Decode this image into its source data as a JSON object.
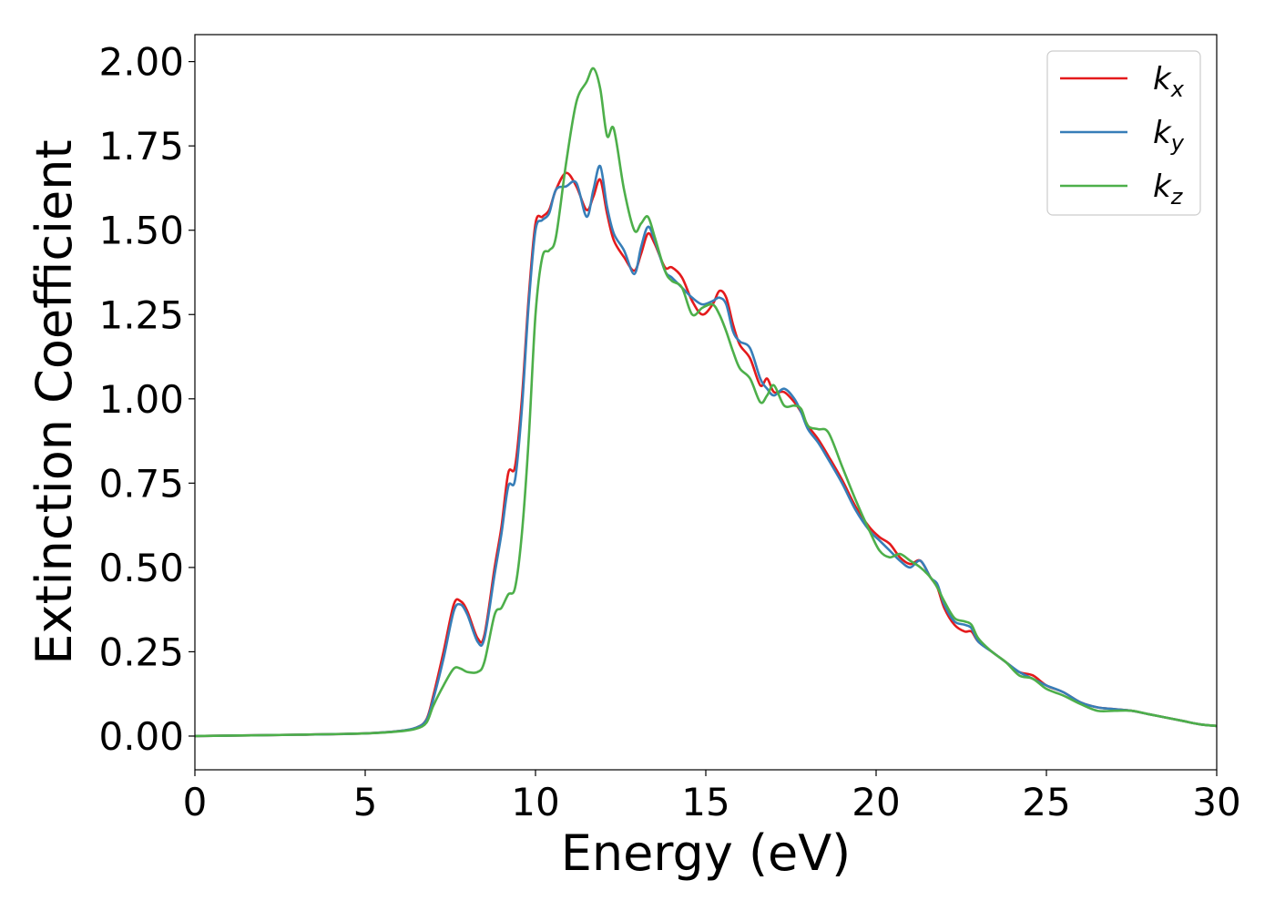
{
  "chart_data": {
    "type": "line",
    "title": "",
    "xlabel": "Energy (eV)",
    "ylabel": "Extinction Coefficient",
    "xlim": [
      0,
      30
    ],
    "ylim": [
      -0.1,
      2.08
    ],
    "xticks": [
      0,
      5,
      10,
      15,
      20,
      25,
      30
    ],
    "xtick_labels": [
      "0",
      "5",
      "10",
      "15",
      "20",
      "25",
      "30"
    ],
    "yticks": [
      0.0,
      0.25,
      0.5,
      0.75,
      1.0,
      1.25,
      1.5,
      1.75,
      2.0
    ],
    "ytick_labels": [
      "0.00",
      "0.25",
      "0.50",
      "0.75",
      "1.00",
      "1.25",
      "1.50",
      "1.75",
      "2.00"
    ],
    "grid": false,
    "legend_position": "top-right",
    "series": [
      {
        "name": "k_x",
        "label_base": "k",
        "label_sub": "x",
        "color": "#e41a1c",
        "x": [
          0,
          3,
          5,
          6,
          6.5,
          6.8,
          7.0,
          7.3,
          7.6,
          7.8,
          8.0,
          8.3,
          8.5,
          8.8,
          9.0,
          9.2,
          9.4,
          9.6,
          9.8,
          10.0,
          10.2,
          10.4,
          10.6,
          10.9,
          11.2,
          11.5,
          11.7,
          11.9,
          12.1,
          12.3,
          12.6,
          12.9,
          13.1,
          13.3,
          13.5,
          13.8,
          14.0,
          14.3,
          14.6,
          14.9,
          15.2,
          15.4,
          15.6,
          15.8,
          16.0,
          16.3,
          16.6,
          16.8,
          17.0,
          17.3,
          17.6,
          17.8,
          18.0,
          18.3,
          18.6,
          19.0,
          19.4,
          19.8,
          20.1,
          20.4,
          20.7,
          21.0,
          21.3,
          21.6,
          21.8,
          22.0,
          22.3,
          22.6,
          22.8,
          23.0,
          23.4,
          23.8,
          24.2,
          24.6,
          25.0,
          25.5,
          26.0,
          26.5,
          27.0,
          27.5,
          28.0,
          28.5,
          29.0,
          29.5,
          30.0
        ],
        "values": [
          0.0,
          0.004,
          0.008,
          0.015,
          0.025,
          0.05,
          0.12,
          0.25,
          0.39,
          0.4,
          0.37,
          0.29,
          0.3,
          0.5,
          0.62,
          0.78,
          0.8,
          1.0,
          1.3,
          1.52,
          1.54,
          1.56,
          1.62,
          1.67,
          1.63,
          1.56,
          1.6,
          1.65,
          1.55,
          1.47,
          1.42,
          1.38,
          1.43,
          1.49,
          1.46,
          1.39,
          1.39,
          1.36,
          1.29,
          1.25,
          1.28,
          1.32,
          1.3,
          1.22,
          1.16,
          1.12,
          1.04,
          1.06,
          1.02,
          1.02,
          0.99,
          0.96,
          0.92,
          0.88,
          0.83,
          0.76,
          0.68,
          0.62,
          0.59,
          0.57,
          0.53,
          0.51,
          0.52,
          0.47,
          0.44,
          0.38,
          0.33,
          0.31,
          0.31,
          0.28,
          0.25,
          0.22,
          0.19,
          0.18,
          0.15,
          0.13,
          0.1,
          0.085,
          0.08,
          0.075,
          0.065,
          0.055,
          0.045,
          0.035,
          0.03
        ]
      },
      {
        "name": "k_y",
        "label_base": "k",
        "label_sub": "y",
        "color": "#377eb8",
        "x": [
          0,
          3,
          5,
          6,
          6.5,
          6.8,
          7.0,
          7.3,
          7.6,
          7.8,
          8.0,
          8.3,
          8.5,
          8.8,
          9.0,
          9.2,
          9.4,
          9.6,
          9.8,
          10.0,
          10.2,
          10.4,
          10.6,
          10.9,
          11.2,
          11.5,
          11.7,
          11.9,
          12.1,
          12.3,
          12.6,
          12.9,
          13.1,
          13.3,
          13.5,
          13.8,
          14.0,
          14.3,
          14.6,
          14.9,
          15.2,
          15.4,
          15.6,
          15.8,
          16.0,
          16.3,
          16.6,
          16.8,
          17.0,
          17.3,
          17.6,
          17.8,
          18.0,
          18.3,
          18.6,
          19.0,
          19.4,
          19.8,
          20.1,
          20.4,
          20.7,
          21.0,
          21.3,
          21.6,
          21.8,
          22.0,
          22.3,
          22.6,
          22.8,
          23.0,
          23.4,
          23.8,
          24.2,
          24.6,
          25.0,
          25.5,
          26.0,
          26.5,
          27.0,
          27.5,
          28.0,
          28.5,
          29.0,
          29.5,
          30.0
        ],
        "values": [
          0.0,
          0.004,
          0.008,
          0.015,
          0.025,
          0.048,
          0.11,
          0.23,
          0.37,
          0.39,
          0.36,
          0.28,
          0.29,
          0.48,
          0.6,
          0.74,
          0.76,
          0.97,
          1.28,
          1.5,
          1.53,
          1.55,
          1.62,
          1.63,
          1.64,
          1.54,
          1.62,
          1.69,
          1.57,
          1.49,
          1.44,
          1.37,
          1.45,
          1.51,
          1.47,
          1.38,
          1.36,
          1.33,
          1.3,
          1.28,
          1.29,
          1.3,
          1.28,
          1.2,
          1.17,
          1.15,
          1.06,
          1.03,
          1.01,
          1.03,
          1.0,
          0.96,
          0.91,
          0.87,
          0.82,
          0.75,
          0.67,
          0.61,
          0.58,
          0.55,
          0.52,
          0.5,
          0.52,
          0.47,
          0.45,
          0.39,
          0.34,
          0.33,
          0.32,
          0.28,
          0.25,
          0.22,
          0.19,
          0.17,
          0.15,
          0.13,
          0.1,
          0.085,
          0.08,
          0.075,
          0.065,
          0.055,
          0.045,
          0.035,
          0.03
        ]
      },
      {
        "name": "k_z",
        "label_base": "k",
        "label_sub": "z",
        "color": "#4daf4a",
        "x": [
          0,
          3,
          5,
          6,
          6.5,
          6.8,
          7.0,
          7.3,
          7.6,
          7.8,
          8.0,
          8.3,
          8.5,
          8.8,
          9.0,
          9.2,
          9.4,
          9.6,
          9.8,
          10.0,
          10.2,
          10.4,
          10.6,
          10.9,
          11.2,
          11.5,
          11.7,
          11.9,
          12.1,
          12.3,
          12.6,
          12.9,
          13.1,
          13.3,
          13.5,
          13.8,
          14.0,
          14.3,
          14.6,
          14.9,
          15.2,
          15.4,
          15.6,
          15.8,
          16.0,
          16.3,
          16.6,
          16.8,
          17.0,
          17.3,
          17.6,
          17.8,
          18.0,
          18.3,
          18.6,
          19.0,
          19.4,
          19.8,
          20.1,
          20.4,
          20.7,
          21.0,
          21.3,
          21.6,
          21.8,
          22.0,
          22.3,
          22.6,
          22.8,
          23.0,
          23.4,
          23.8,
          24.2,
          24.6,
          25.0,
          25.5,
          26.0,
          26.5,
          27.0,
          27.5,
          28.0,
          28.5,
          29.0,
          29.5,
          30.0
        ],
        "values": [
          0.0,
          0.004,
          0.008,
          0.014,
          0.022,
          0.04,
          0.09,
          0.15,
          0.2,
          0.2,
          0.19,
          0.19,
          0.22,
          0.36,
          0.38,
          0.42,
          0.44,
          0.6,
          0.88,
          1.25,
          1.42,
          1.44,
          1.48,
          1.7,
          1.88,
          1.94,
          1.98,
          1.92,
          1.78,
          1.8,
          1.62,
          1.5,
          1.52,
          1.54,
          1.48,
          1.38,
          1.35,
          1.33,
          1.25,
          1.27,
          1.28,
          1.25,
          1.2,
          1.14,
          1.09,
          1.06,
          0.99,
          1.01,
          1.04,
          0.98,
          0.98,
          0.97,
          0.92,
          0.91,
          0.9,
          0.8,
          0.7,
          0.61,
          0.55,
          0.53,
          0.54,
          0.52,
          0.5,
          0.47,
          0.44,
          0.4,
          0.35,
          0.34,
          0.33,
          0.29,
          0.25,
          0.22,
          0.18,
          0.17,
          0.14,
          0.12,
          0.095,
          0.075,
          0.075,
          0.075,
          0.065,
          0.055,
          0.045,
          0.035,
          0.03
        ]
      }
    ]
  }
}
